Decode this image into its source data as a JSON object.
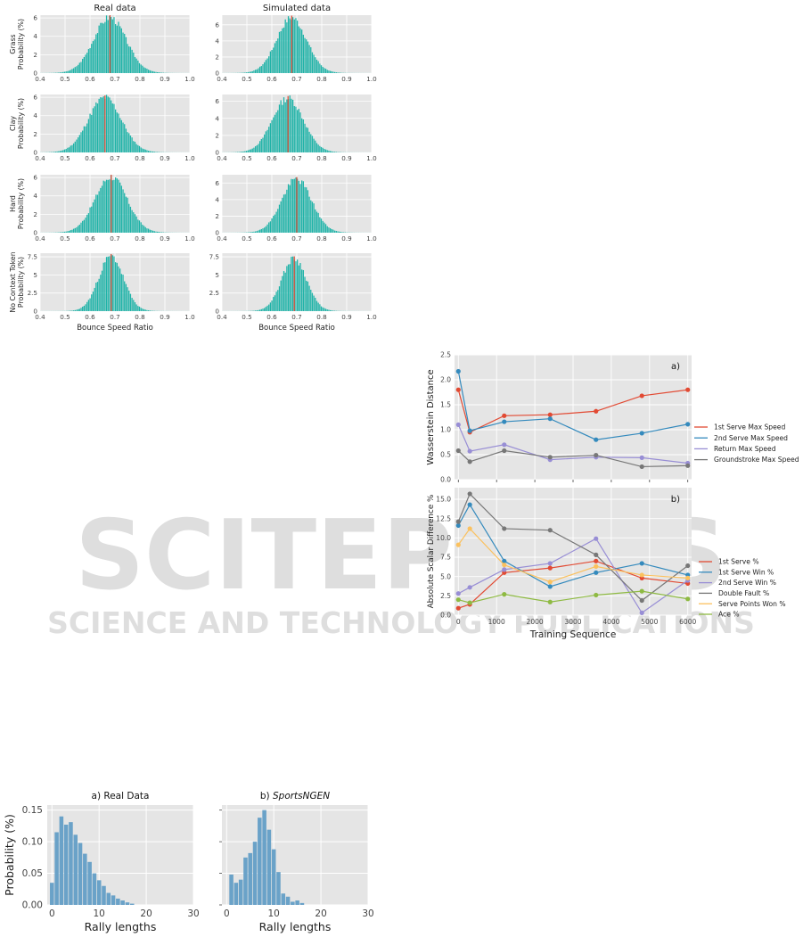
{
  "watermark": {
    "line1": "SCITEPRESS",
    "line2": "SCIENCE AND TECHNOLOGY PUBLICATIONS"
  },
  "colors": {
    "panel_bg": "#e5e5e5",
    "hist_teal": "#1fb3a8",
    "mean_red": "#e24a33",
    "rally_blue": "#6aa2c8"
  },
  "chart_data": [
    {
      "type": "bar",
      "id": "bounce_speed_ratio",
      "col_titles": [
        "Real data",
        "Simulated data"
      ],
      "row_labels": [
        "Grass",
        "Clay",
        "Hard",
        "No Context Token"
      ],
      "ylabel": "Probability (%)",
      "xlabel": "Bounce Speed Ratio",
      "xlim": [
        0.4,
        1.0
      ],
      "xticks": [
        "0.4",
        "0.5",
        "0.6",
        "0.7",
        "0.8",
        "0.9",
        "1.0"
      ],
      "panels": [
        {
          "row": 0,
          "col": 0,
          "mean": 0.68,
          "sd": 0.065,
          "peak": 6.0,
          "ymax": 6.3,
          "yticks": [
            0,
            2,
            4,
            6
          ],
          "seed": 3
        },
        {
          "row": 0,
          "col": 1,
          "mean": 0.68,
          "sd": 0.06,
          "peak": 6.8,
          "ymax": 7.2,
          "yticks": [
            0,
            2,
            4,
            6
          ],
          "seed": 7
        },
        {
          "row": 1,
          "col": 0,
          "mean": 0.66,
          "sd": 0.066,
          "peak": 5.9,
          "ymax": 6.3,
          "yticks": [
            0,
            2,
            4,
            6
          ],
          "seed": 11
        },
        {
          "row": 1,
          "col": 1,
          "mean": 0.665,
          "sd": 0.062,
          "peak": 6.3,
          "ymax": 6.8,
          "yticks": [
            0,
            2,
            4,
            6
          ],
          "seed": 13
        },
        {
          "row": 2,
          "col": 0,
          "mean": 0.685,
          "sd": 0.064,
          "peak": 6.0,
          "ymax": 6.3,
          "yticks": [
            0,
            2,
            4,
            6
          ],
          "seed": 17
        },
        {
          "row": 2,
          "col": 1,
          "mean": 0.7,
          "sd": 0.06,
          "peak": 6.4,
          "ymax": 7.0,
          "yticks": [
            0,
            2,
            4,
            6
          ],
          "seed": 19
        },
        {
          "row": 3,
          "col": 0,
          "mean": 0.685,
          "sd": 0.05,
          "peak": 7.5,
          "ymax": 8.0,
          "yticks": [
            0.0,
            2.5,
            5.0,
            7.5
          ],
          "seed": 23
        },
        {
          "row": 3,
          "col": 1,
          "mean": 0.69,
          "sd": 0.05,
          "peak": 7.2,
          "ymax": 8.0,
          "yticks": [
            0.0,
            2.5,
            5.0,
            7.5
          ],
          "seed": 29
        }
      ]
    },
    {
      "type": "line",
      "id": "wasserstein",
      "tag": "a)",
      "ylabel": "Wasserstein Distance",
      "x": [
        0,
        300,
        1200,
        2400,
        3600,
        4800,
        6000
      ],
      "xlim": [
        -100,
        6100
      ],
      "ylim": [
        0,
        2.5
      ],
      "yticks": [
        "0.0",
        "0.5",
        "1.0",
        "1.5",
        "2.0",
        "2.5"
      ],
      "series": [
        {
          "name": "1st Serve Max Speed",
          "color": "#e24a33",
          "values": [
            1.8,
            0.95,
            1.28,
            1.3,
            1.37,
            1.68,
            1.8
          ]
        },
        {
          "name": "2nd Serve Max Speed",
          "color": "#348abd",
          "values": [
            2.17,
            0.98,
            1.16,
            1.22,
            0.8,
            0.93,
            1.11
          ]
        },
        {
          "name": "Return Max Speed",
          "color": "#988ed5",
          "values": [
            1.1,
            0.57,
            0.7,
            0.4,
            0.45,
            0.44,
            0.33
          ]
        },
        {
          "name": "Groundstroke Max Speed",
          "color": "#777777",
          "values": [
            0.58,
            0.36,
            0.58,
            0.45,
            0.49,
            0.26,
            0.28
          ]
        }
      ]
    },
    {
      "type": "line",
      "id": "scalar_diff",
      "tag": "b)",
      "ylabel": "Absolute Scalar Difference %",
      "xlabel": "Training Sequence",
      "x": [
        0,
        300,
        1200,
        2400,
        3600,
        4800,
        6000
      ],
      "xlim": [
        -100,
        6100
      ],
      "ylim": [
        0,
        16.5
      ],
      "yticks": [
        "0.0",
        "2.5",
        "5.0",
        "7.5",
        "10.0",
        "12.5",
        "15.0"
      ],
      "xticks": [
        "0",
        "1000",
        "2000",
        "3000",
        "4000",
        "5000",
        "6000"
      ],
      "series": [
        {
          "name": "1st Serve %",
          "color": "#e24a33",
          "values": [
            0.9,
            1.4,
            5.5,
            6.1,
            7.0,
            4.8,
            4.1
          ]
        },
        {
          "name": "1st Serve Win %",
          "color": "#348abd",
          "values": [
            11.6,
            14.3,
            7.0,
            3.7,
            5.5,
            6.7,
            5.2
          ]
        },
        {
          "name": "2nd Serve Win %",
          "color": "#988ed5",
          "values": [
            2.8,
            3.6,
            5.9,
            6.7,
            9.9,
            0.3,
            4.5
          ]
        },
        {
          "name": "Double Fault %",
          "color": "#777777",
          "values": [
            12.1,
            15.7,
            11.2,
            11.0,
            7.8,
            1.9,
            6.4
          ]
        },
        {
          "name": "Serve Points Won %",
          "color": "#fbc15e",
          "values": [
            9.1,
            11.2,
            6.5,
            4.3,
            6.3,
            5.2,
            4.8
          ]
        },
        {
          "name": "Ace %",
          "color": "#8eba42",
          "values": [
            2.0,
            1.6,
            2.7,
            1.7,
            2.6,
            3.1,
            2.1
          ]
        }
      ]
    },
    {
      "type": "bar",
      "id": "rally_real",
      "title": "a) Real Data",
      "ylabel": "Probability (%)",
      "xlabel": "Rally lengths",
      "xlim": [
        -1,
        30
      ],
      "ylim": [
        0,
        0.158
      ],
      "xticks": [
        0,
        10,
        20,
        30
      ],
      "yticks": [
        "0.00",
        "0.05",
        "0.10",
        "0.15"
      ],
      "categories": [
        0,
        1,
        2,
        3,
        4,
        5,
        6,
        7,
        8,
        9,
        10,
        11,
        12,
        13,
        14,
        15,
        16,
        17
      ],
      "values": [
        0.035,
        0.115,
        0.14,
        0.127,
        0.131,
        0.111,
        0.098,
        0.081,
        0.068,
        0.05,
        0.039,
        0.03,
        0.019,
        0.015,
        0.01,
        0.007,
        0.004,
        0.002
      ]
    },
    {
      "type": "bar",
      "id": "rally_sim",
      "title_prefix": "b) ",
      "title_name": "SportsNGEN",
      "xlabel": "Rally lengths",
      "xlim": [
        -1,
        30
      ],
      "ylim": [
        0,
        0.158
      ],
      "xticks": [
        0,
        10,
        20,
        30
      ],
      "categories": [
        1,
        2,
        3,
        4,
        5,
        6,
        7,
        8,
        9,
        10,
        11,
        12,
        13,
        14,
        15,
        16
      ],
      "values": [
        0.048,
        0.035,
        0.04,
        0.075,
        0.082,
        0.1,
        0.138,
        0.15,
        0.119,
        0.088,
        0.052,
        0.018,
        0.013,
        0.005,
        0.007,
        0.003
      ]
    }
  ]
}
